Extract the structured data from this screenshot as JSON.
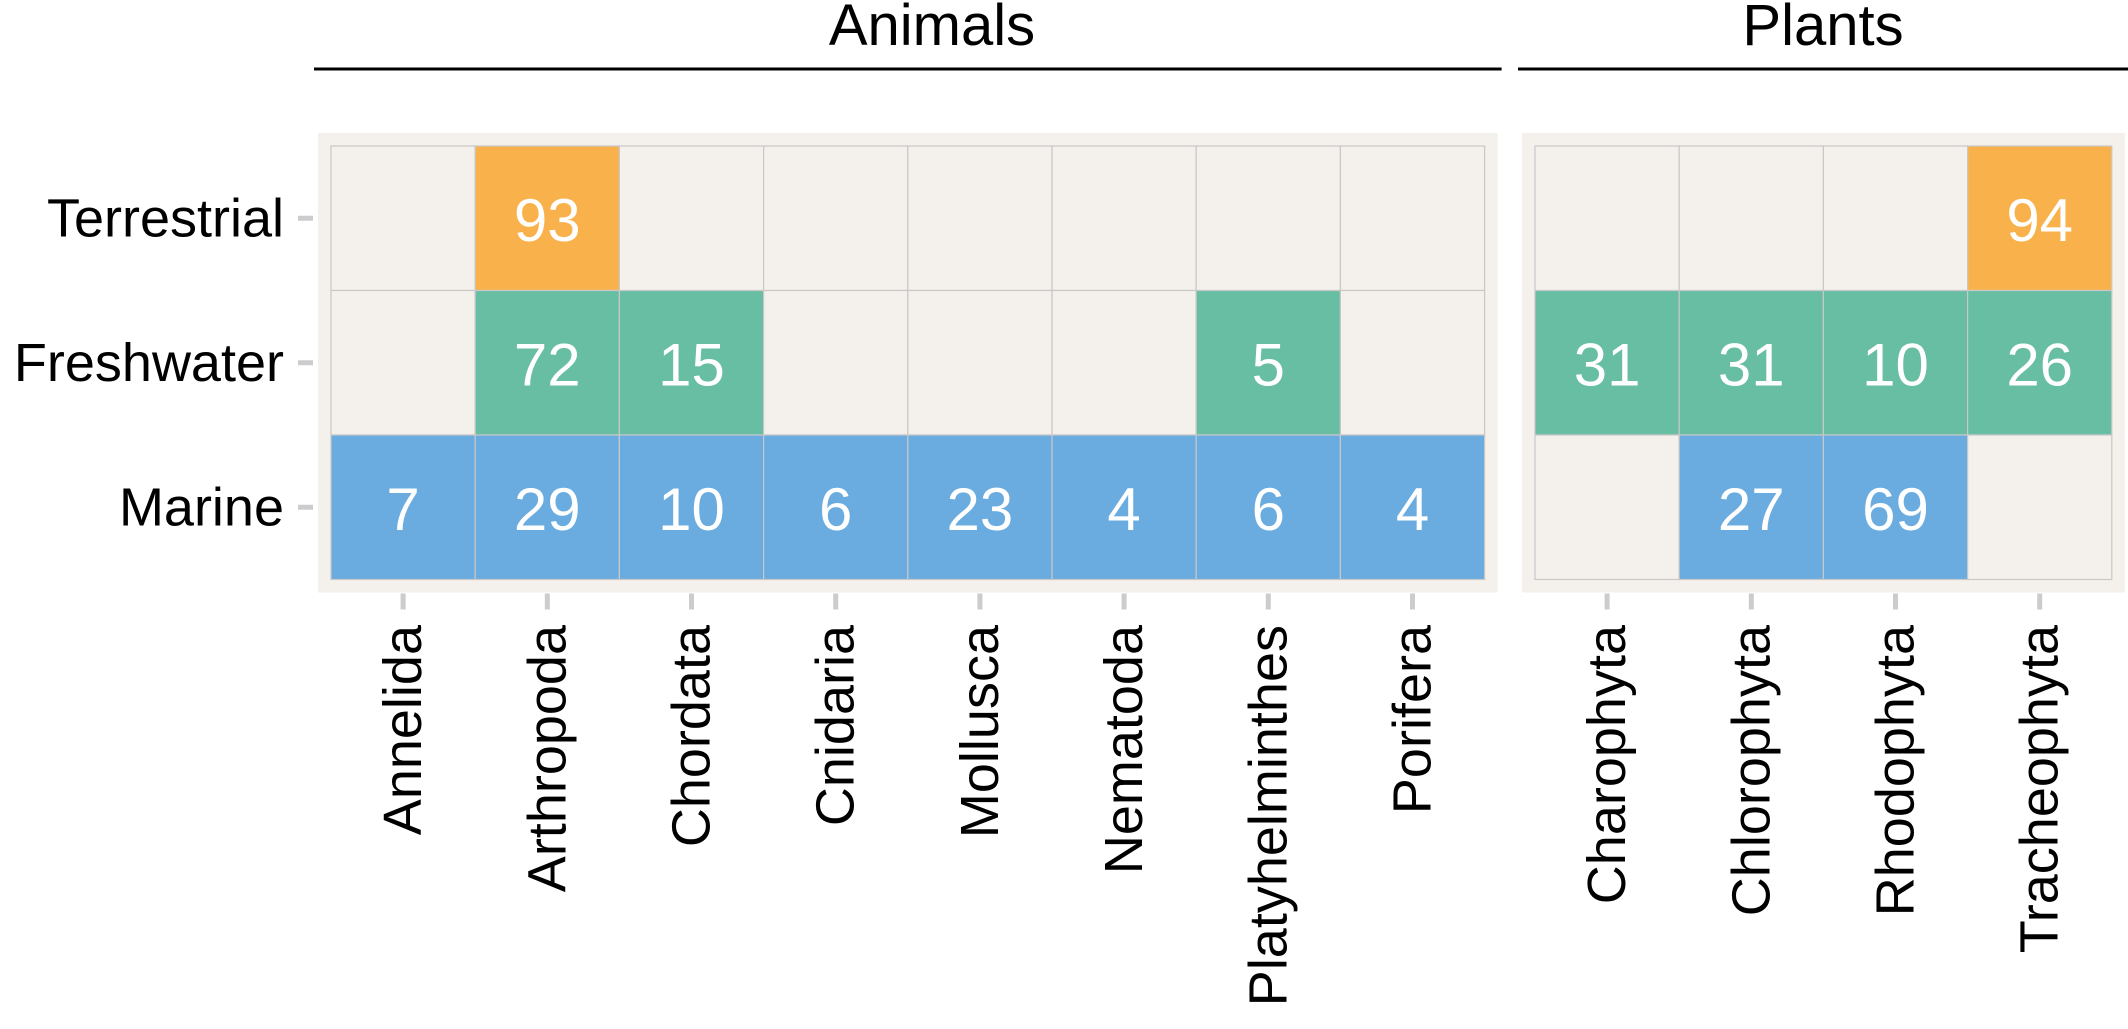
{
  "chart_data": {
    "type": "heatmap",
    "rows": [
      "Terrestrial",
      "Freshwater",
      "Marine"
    ],
    "colors": {
      "Terrestrial": "#F9B24B",
      "Freshwater": "#67BEA3",
      "Marine": "#6AACDF",
      "empty": "#F4F0EB",
      "panel_bg": "#F4F0EB",
      "grid": "#C8C8C8",
      "tick": "#CCCCCC"
    },
    "panels": [
      {
        "title": "Animals",
        "columns": [
          "Annelida",
          "Arthropoda",
          "Chordata",
          "Cnidaria",
          "Mollusca",
          "Nematoda",
          "Platyhelminthes",
          "Porifera"
        ],
        "values": [
          [
            null,
            93,
            null,
            null,
            null,
            null,
            null,
            null
          ],
          [
            null,
            72,
            15,
            null,
            null,
            null,
            5,
            null
          ],
          [
            7,
            29,
            10,
            6,
            23,
            4,
            6,
            4
          ]
        ]
      },
      {
        "title": "Plants",
        "columns": [
          "Charophyta",
          "Chlorophyta",
          "Rhodophyta",
          "Tracheophyta"
        ],
        "values": [
          [
            null,
            null,
            null,
            94
          ],
          [
            31,
            31,
            10,
            26
          ],
          [
            null,
            27,
            69,
            null
          ]
        ]
      }
    ]
  }
}
